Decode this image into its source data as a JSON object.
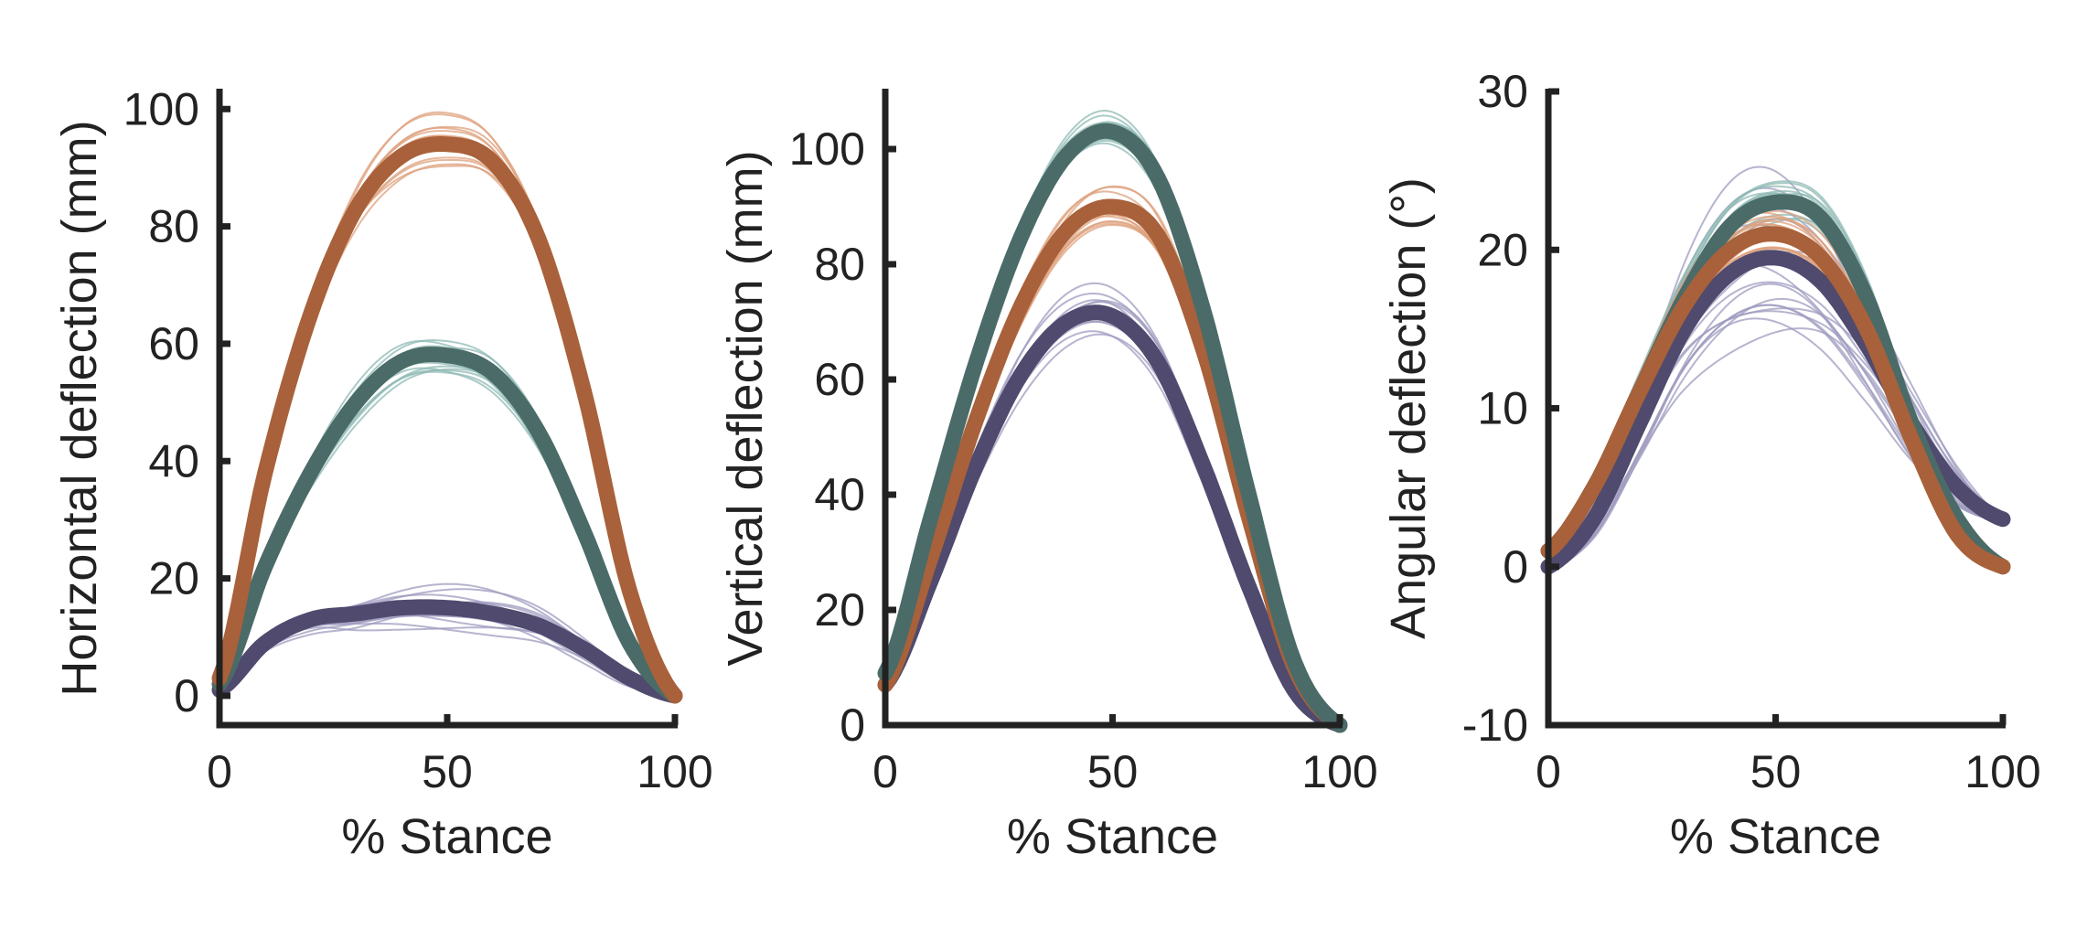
{
  "chart_data": [
    {
      "type": "line",
      "xlabel": "% Stance",
      "ylabel": "Horizontal deflection (mm)",
      "xlim": [
        0,
        100
      ],
      "ylim": [
        -5,
        103
      ],
      "xticks": [
        0,
        50,
        100
      ],
      "yticks": [
        0,
        20,
        40,
        60,
        80,
        100
      ],
      "grid": false,
      "legend": "none",
      "x": [
        0,
        10,
        20,
        30,
        40,
        50,
        60,
        70,
        80,
        90,
        100
      ],
      "series": [
        {
          "color": "#4f4a6e",
          "trial_color": "#9e9bbf",
          "trial_count": 15,
          "trial_spread": 3.5,
          "values": [
            1,
            9,
            13,
            14,
            15,
            15,
            14,
            12,
            8,
            3,
            0
          ]
        },
        {
          "color": "#4b6b68",
          "trial_color": "#8fbab4",
          "trial_count": 15,
          "trial_spread": 3,
          "values": [
            2,
            22,
            38,
            50,
            57,
            58,
            55,
            45,
            28,
            9,
            0
          ]
        },
        {
          "color": "#a8613a",
          "trial_color": "#dda07c",
          "trial_count": 15,
          "trial_spread": 4,
          "values": [
            3,
            38,
            65,
            83,
            92,
            94,
            91,
            78,
            52,
            18,
            0
          ]
        }
      ]
    },
    {
      "type": "line",
      "xlabel": "% Stance",
      "ylabel": "Vertical deflection (mm)",
      "xlim": [
        0,
        100
      ],
      "ylim": [
        0,
        110
      ],
      "xticks": [
        0,
        50,
        100
      ],
      "yticks": [
        0,
        20,
        40,
        60,
        80,
        100
      ],
      "grid": false,
      "legend": "none",
      "x": [
        0,
        10,
        20,
        30,
        40,
        50,
        60,
        70,
        80,
        90,
        100
      ],
      "series": [
        {
          "color": "#4f4a6e",
          "trial_color": "#9e9bbf",
          "trial_count": 15,
          "trial_spread": 4,
          "values": [
            7,
            25,
            45,
            61,
            70,
            71,
            63,
            45,
            24,
            6,
            0
          ]
        },
        {
          "color": "#a8613a",
          "trial_color": "#dda07c",
          "trial_count": 15,
          "trial_spread": 4,
          "values": [
            7,
            29,
            53,
            73,
            86,
            90,
            85,
            65,
            36,
            10,
            0
          ]
        },
        {
          "color": "#4b6b68",
          "trial_color": "#8fbab4",
          "trial_count": 15,
          "trial_spread": 3,
          "values": [
            9,
            36,
            63,
            85,
            99,
            103,
            95,
            72,
            40,
            11,
            0
          ]
        }
      ]
    },
    {
      "type": "line",
      "xlabel": "% Stance",
      "ylabel": "Angular deflection (°)",
      "xlim": [
        0,
        100
      ],
      "ylim": [
        -10,
        30
      ],
      "xticks": [
        0,
        50,
        100
      ],
      "yticks": [
        -10,
        0,
        10,
        20,
        30
      ],
      "grid": false,
      "legend": "none",
      "x": [
        0,
        10,
        20,
        30,
        40,
        50,
        60,
        70,
        80,
        90,
        100
      ],
      "series": [
        {
          "color": "#4f4a6e",
          "trial_color": "#9e9bbf",
          "trial_count": 20,
          "trial_spread": 4,
          "values": [
            0,
            3,
            9,
            15,
            18.5,
            19.5,
            18,
            14,
            9,
            5,
            3
          ]
        },
        {
          "color": "#4b6b68",
          "trial_color": "#8fbab4",
          "trial_count": 15,
          "trial_spread": 1.5,
          "values": [
            1,
            5,
            11,
            17,
            21.5,
            23,
            22,
            17,
            9,
            3,
            0
          ]
        },
        {
          "color": "#a8613a",
          "trial_color": "#dda07c",
          "trial_count": 15,
          "trial_spread": 1.5,
          "values": [
            1,
            5,
            11,
            16.5,
            20,
            21,
            19.5,
            15,
            8,
            2,
            0
          ]
        }
      ]
    }
  ]
}
